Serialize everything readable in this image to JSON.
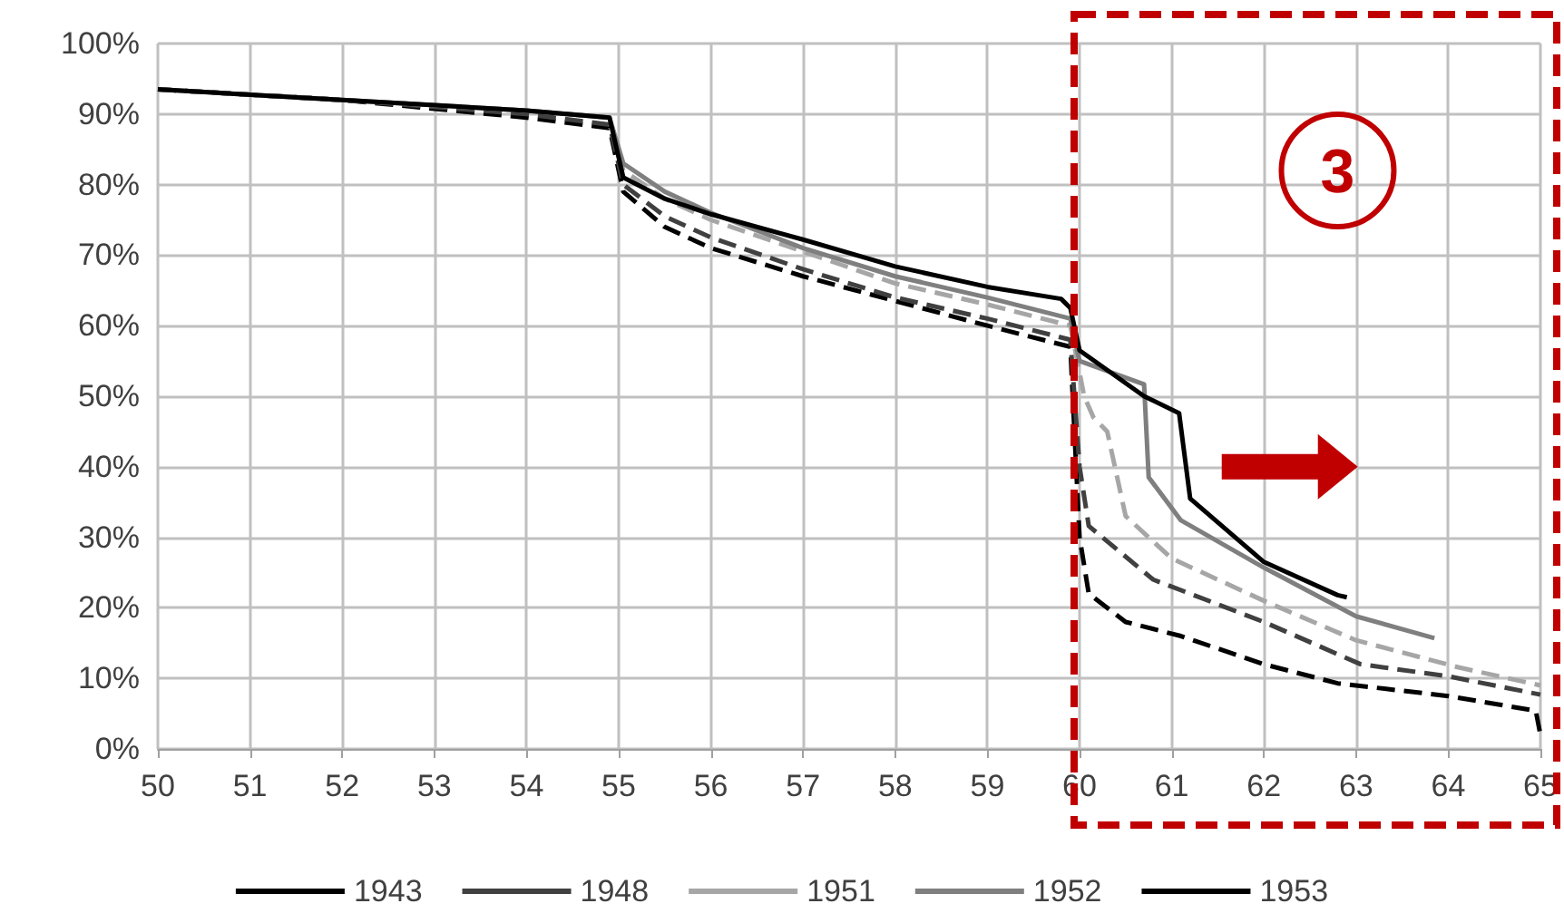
{
  "chart_data": {
    "type": "line",
    "xlim": [
      50,
      65
    ],
    "xticks": [
      50,
      51,
      52,
      53,
      54,
      55,
      56,
      57,
      58,
      59,
      60,
      61,
      62,
      63,
      64,
      65
    ],
    "ylim": [
      0,
      100
    ],
    "yticks": [
      {
        "value": 0,
        "label": "0%"
      },
      {
        "value": 10,
        "label": "10%"
      },
      {
        "value": 20,
        "label": "20%"
      },
      {
        "value": 30,
        "label": "30%"
      },
      {
        "value": 40,
        "label": "40%"
      },
      {
        "value": 50,
        "label": "50%"
      },
      {
        "value": 60,
        "label": "60%"
      },
      {
        "value": 70,
        "label": "70%"
      },
      {
        "value": 80,
        "label": "80%"
      },
      {
        "value": 90,
        "label": "90%"
      },
      {
        "value": 100,
        "label": "100%"
      }
    ],
    "grid": true,
    "legend": "bottom",
    "marker": "none",
    "annotations": [
      "3"
    ],
    "series": [
      {
        "name": "1943",
        "color": "#000000",
        "line_style": "dashed",
        "x": [
          50,
          52,
          54,
          54.9,
          55.05,
          55.5,
          56,
          57,
          58,
          59,
          59.9,
          60,
          60.1,
          60.5,
          61.1,
          62,
          62.8,
          64,
          64.95,
          65
        ],
        "values": [
          93.5,
          92,
          89.5,
          88,
          79,
          74,
          71,
          67,
          63.5,
          60,
          57,
          30,
          22,
          18,
          16,
          12,
          9.3,
          7.5,
          5.4,
          2
        ]
      },
      {
        "name": "1948",
        "color": "#404040",
        "line_style": "dashed",
        "x": [
          50,
          52,
          54,
          54.9,
          55.05,
          55.5,
          56,
          57,
          58,
          59,
          59.9,
          60,
          60.1,
          60.8,
          62,
          63.05,
          64,
          65
        ],
        "values": [
          93.5,
          92,
          90,
          88.5,
          80,
          75.5,
          72.5,
          68,
          64,
          61,
          58,
          40,
          31.6,
          24,
          18,
          12,
          10.3,
          7.7
        ]
      },
      {
        "name": "1951",
        "color": "#a6a6a6",
        "line_style": "dashed",
        "x": [
          50,
          52,
          54,
          54.9,
          55.05,
          55.5,
          56,
          57,
          58,
          59,
          59.9,
          60.05,
          60.15,
          60.3,
          60.5,
          61,
          62,
          63,
          64.1,
          65
        ],
        "values": [
          93.5,
          92,
          90.5,
          89.5,
          82,
          78,
          75,
          70.5,
          66,
          63,
          60,
          50,
          47,
          45,
          33,
          27,
          21,
          15.4,
          11.6,
          9
        ]
      },
      {
        "name": "1952",
        "color": "#7f7f7f",
        "line_style": "solid",
        "x": [
          50,
          52,
          54,
          54.9,
          55.05,
          55.5,
          56,
          57,
          58,
          59,
          59.9,
          60,
          60.7,
          60.75,
          61.1,
          62,
          63,
          63.85
        ],
        "values": [
          93.5,
          92,
          90.5,
          89.5,
          83,
          79,
          76,
          71,
          67,
          64,
          61,
          55,
          51.7,
          38.5,
          32.4,
          25.7,
          18.8,
          15.7
        ]
      },
      {
        "name": "1953",
        "color": "#000000",
        "line_style": "solid",
        "x": [
          50,
          52,
          54,
          54.9,
          55.05,
          55.5,
          56,
          57,
          58,
          59,
          59.8,
          59.9,
          60,
          60.7,
          61.08,
          61.2,
          62,
          62.8,
          62.9
        ],
        "values": [
          93.5,
          92,
          90.5,
          89.5,
          81,
          78,
          75.8,
          72.2,
          68.4,
          65.5,
          63.8,
          62.5,
          56.5,
          50,
          47.6,
          35.5,
          26.5,
          21.8,
          21.5
        ]
      }
    ]
  }
}
